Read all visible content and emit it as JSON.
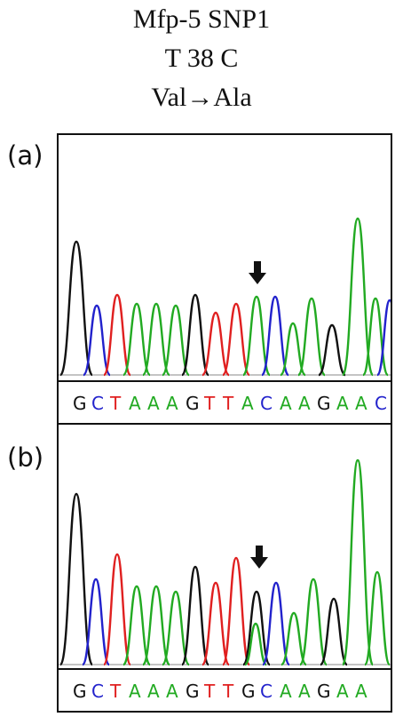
{
  "title": {
    "line1": "Mfp-5 SNP1",
    "line2": "T 38 C",
    "line3": "Val→Ala"
  },
  "panels": [
    {
      "label": "(a)",
      "sequence": [
        "G",
        "C",
        "T",
        "A",
        "A",
        "A",
        "G",
        "T",
        "T",
        "A",
        "C",
        "A",
        "A",
        "G",
        "A",
        "A",
        "C"
      ]
    },
    {
      "label": "(b)",
      "sequence": [
        "G",
        "C",
        "T",
        "A",
        "A",
        "A",
        "G",
        "T",
        "T",
        "G",
        "C",
        "A",
        "A",
        "G",
        "A",
        "A"
      ]
    }
  ],
  "colors": {
    "G": "#111111",
    "C": "#2222cc",
    "T": "#e02020",
    "A": "#22aa22"
  },
  "marker": "down-arrow"
}
